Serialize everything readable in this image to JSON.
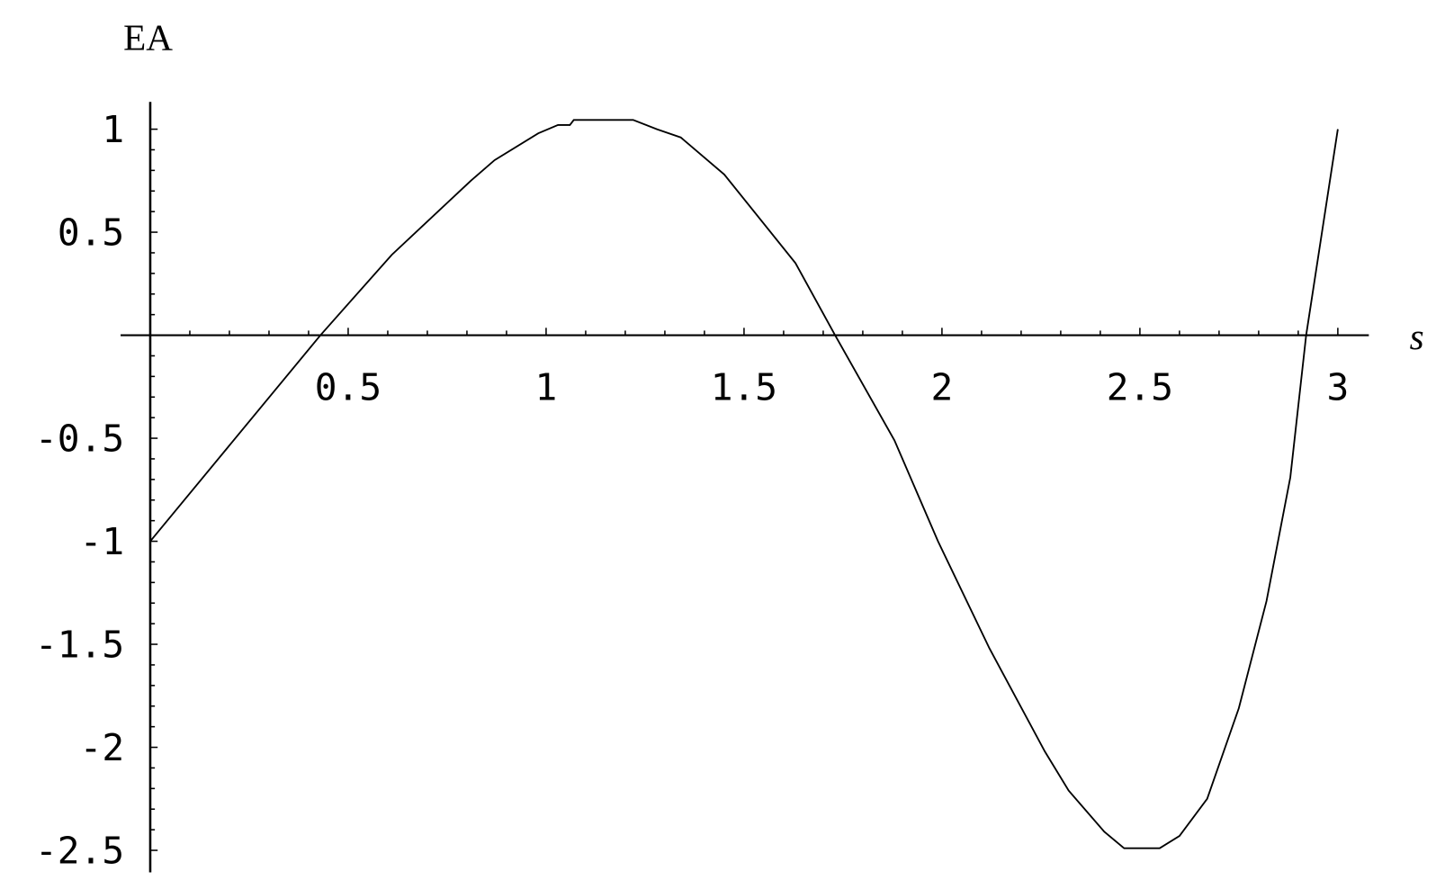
{
  "chart_data": {
    "type": "line",
    "title": "",
    "xlabel": "s",
    "ylabel": "EA",
    "xlim": [
      0,
      3.08
    ],
    "ylim": [
      -2.55,
      1.1
    ],
    "grid": false,
    "x_ticks": [
      0.5,
      1,
      1.5,
      2,
      2.5,
      3
    ],
    "x_tick_labels": [
      "0.5",
      "1",
      "1.5",
      "2",
      "2.5",
      "3"
    ],
    "y_ticks": [
      1,
      0.5,
      -0.5,
      -1,
      -1.5,
      -2,
      -2.5
    ],
    "y_tick_labels": [
      "1",
      "0.5",
      "-0.5",
      "-1",
      "-1.5",
      "-2",
      "-2.5"
    ],
    "series": [
      {
        "color": "#000000",
        "x": [
          0,
          0.43,
          0.61,
          0.81,
          0.87,
          0.98,
          1.03,
          1.06,
          1.07,
          1.22,
          1.28,
          1.34,
          1.45,
          1.63,
          1.73,
          1.88,
          1.99,
          2.12,
          2.26,
          2.32,
          2.41,
          2.46,
          2.55,
          2.6,
          2.67,
          2.75,
          2.82,
          2.88,
          2.92,
          3.0
        ],
        "y": [
          -1,
          0,
          0.39,
          0.75,
          0.85,
          0.98,
          1.02,
          1.02,
          1.045,
          1.045,
          1.0,
          0.96,
          0.78,
          0.35,
          0,
          -0.51,
          -1.0,
          -1.52,
          -2.02,
          -2.21,
          -2.41,
          -2.49,
          -2.49,
          -2.43,
          -2.25,
          -1.81,
          -1.29,
          -0.69,
          0,
          1.0
        ]
      }
    ]
  }
}
